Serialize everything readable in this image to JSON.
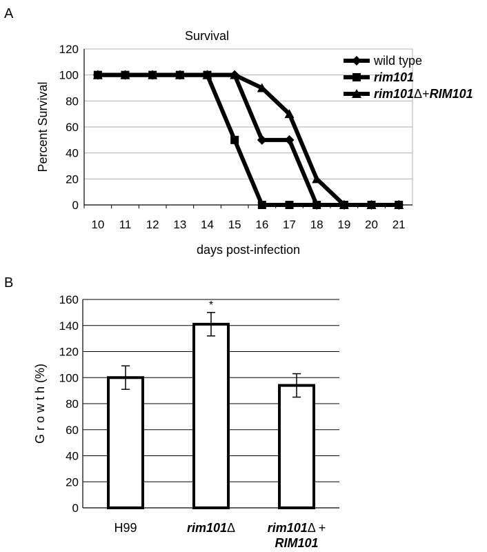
{
  "chart_data": [
    {
      "panel_label": "A",
      "type": "line",
      "title": "Survival",
      "xlabel": "days post-infection",
      "ylabel": "Percent Survival",
      "x": [
        10,
        11,
        12,
        13,
        14,
        15,
        16,
        17,
        18,
        19,
        20,
        21
      ],
      "xlim": [
        10,
        21
      ],
      "ylim": [
        0,
        120
      ],
      "yticks": [
        0,
        20,
        40,
        60,
        80,
        100,
        120
      ],
      "grid": true,
      "legend_position": "top-right",
      "series": [
        {
          "name": "wild type",
          "marker": "diamond",
          "values": [
            100,
            100,
            100,
            100,
            100,
            100,
            50,
            50,
            0,
            0,
            0,
            0
          ]
        },
        {
          "name": "rim101",
          "marker": "square",
          "values": [
            100,
            100,
            100,
            100,
            100,
            50,
            0,
            0,
            0,
            0,
            0,
            0
          ]
        },
        {
          "name": "rim101Δ+RIM101",
          "marker": "triangle",
          "values": [
            100,
            100,
            100,
            100,
            100,
            100,
            90,
            70,
            20,
            0,
            0,
            0
          ]
        }
      ]
    },
    {
      "panel_label": "B",
      "type": "bar",
      "ylabel": "G r o w t h  (%)",
      "categories": [
        "H99",
        "rim101Δ",
        "rim101Δ + RIM101"
      ],
      "category_lines": [
        [
          "H99"
        ],
        [
          "rim101Δ"
        ],
        [
          "rim101Δ +",
          "RIM101"
        ]
      ],
      "values": [
        100,
        141,
        94
      ],
      "errors": [
        9,
        9,
        9
      ],
      "annotations": [
        "",
        "*",
        ""
      ],
      "ylim": [
        0,
        160
      ],
      "yticks": [
        0,
        20,
        40,
        60,
        80,
        100,
        120,
        140,
        160
      ],
      "grid": true
    }
  ]
}
